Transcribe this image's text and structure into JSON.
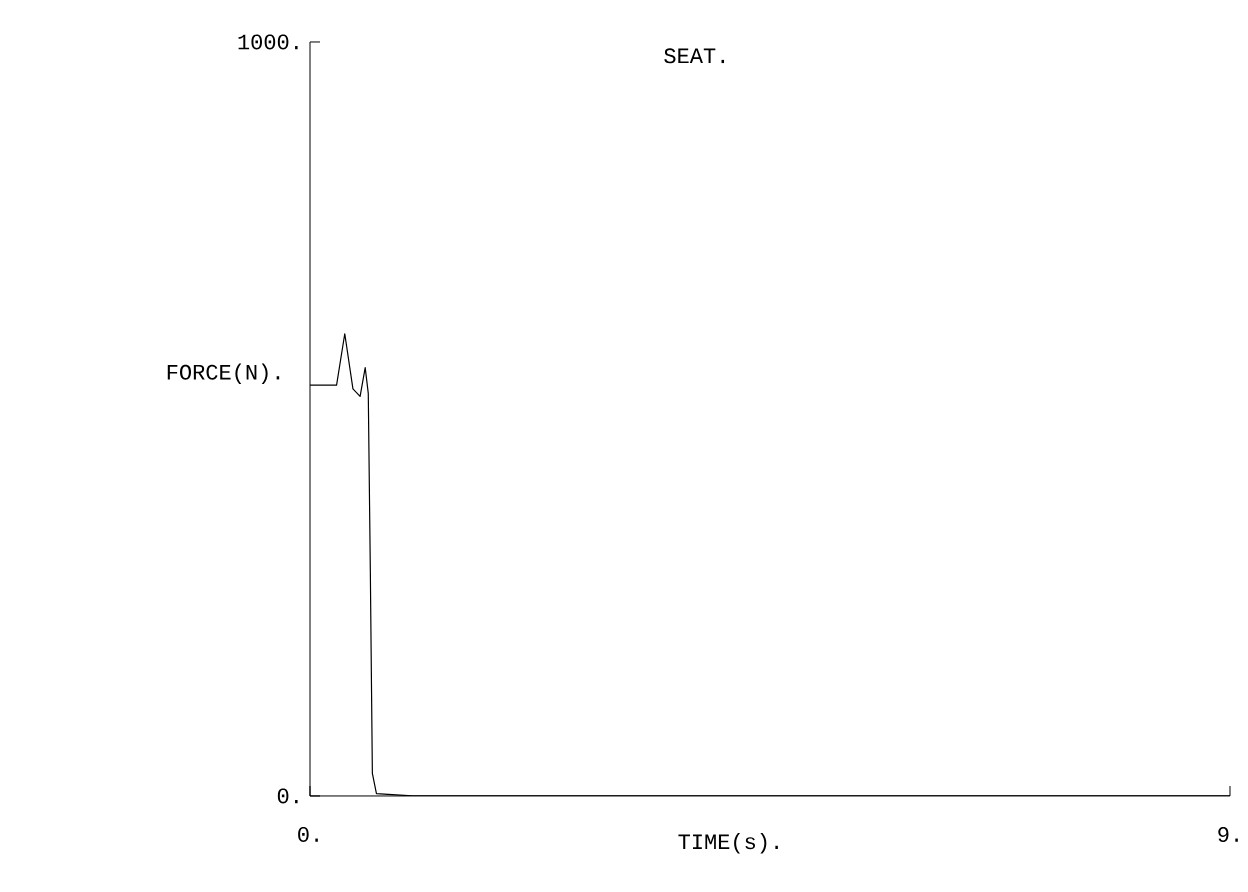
{
  "chart_data": {
    "type": "line",
    "title": "SEAT.",
    "xlabel": "TIME(s).",
    "ylabel": "FORCE(N).",
    "x": [
      0,
      0.26,
      0.34,
      0.42,
      0.49,
      0.54,
      0.57,
      0.59,
      0.61,
      0.65,
      1,
      2,
      3,
      4,
      5,
      6,
      7,
      8,
      9
    ],
    "series": [
      {
        "color": "#000000",
        "values": [
          545,
          545,
          613,
          540,
          530,
          568,
          534,
          300,
          30,
          3,
          0,
          0,
          0,
          0,
          0,
          0,
          0,
          0,
          0
        ]
      }
    ],
    "xlim": [
      0,
      9
    ],
    "ylim": [
      0,
      1000
    ],
    "xticks": [
      {
        "value": 0,
        "label": "0."
      },
      {
        "value": 9,
        "label": "9."
      }
    ],
    "yticks": [
      {
        "value": 0,
        "label": "0."
      },
      {
        "value": 1000,
        "label": "1000."
      }
    ],
    "grid": false,
    "marker": "none",
    "line_style": "solid"
  }
}
